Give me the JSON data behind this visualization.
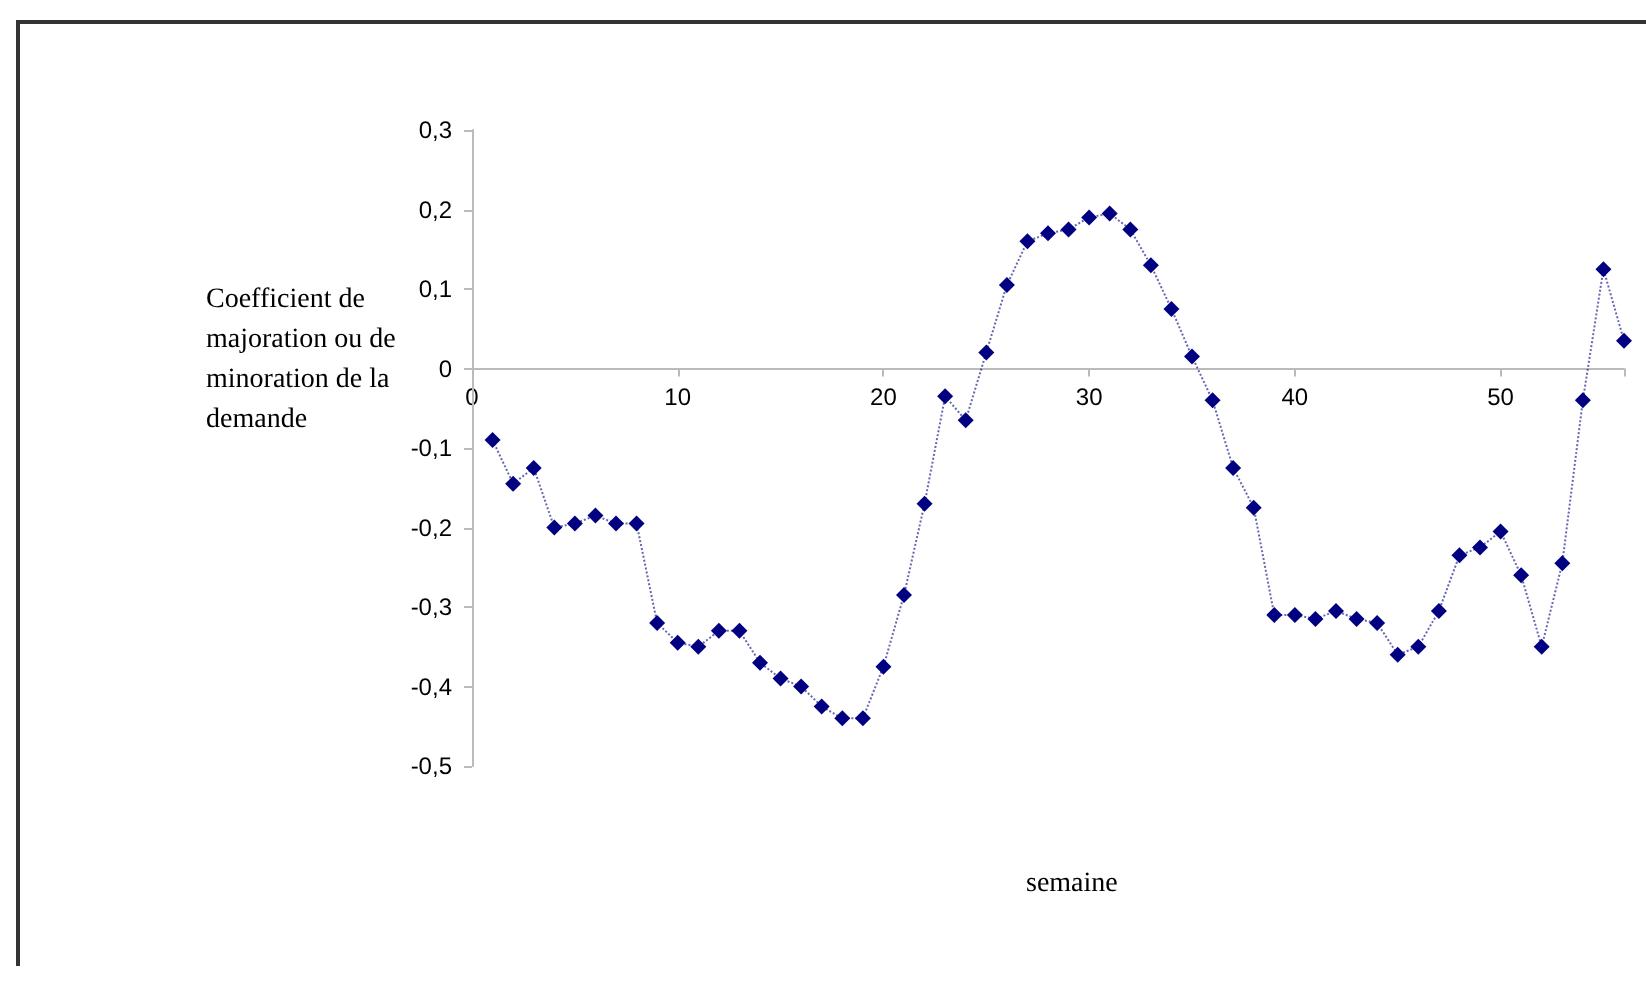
{
  "chart_data": {
    "type": "line",
    "xlabel": "semaine",
    "ylabel": "Coefficient de majoration ou de minoration de la demande",
    "x": [
      1,
      2,
      3,
      4,
      5,
      6,
      7,
      8,
      9,
      10,
      11,
      12,
      13,
      14,
      15,
      16,
      17,
      18,
      19,
      20,
      21,
      22,
      23,
      24,
      25,
      26,
      27,
      28,
      29,
      30,
      31,
      32,
      33,
      34,
      35,
      36,
      37,
      38,
      39,
      40,
      41,
      42,
      43,
      44,
      45,
      46,
      47,
      48,
      49,
      50,
      51,
      52,
      53,
      54,
      55,
      56
    ],
    "series": [
      {
        "color": "#000080",
        "values": [
          -0.09,
          -0.145,
          -0.125,
          -0.2,
          -0.195,
          -0.185,
          -0.195,
          -0.195,
          -0.32,
          -0.345,
          -0.35,
          -0.33,
          -0.33,
          -0.37,
          -0.39,
          -0.4,
          -0.425,
          -0.44,
          -0.44,
          -0.375,
          -0.285,
          -0.17,
          -0.035,
          -0.065,
          0.02,
          0.105,
          0.16,
          0.17,
          0.175,
          0.19,
          0.195,
          0.175,
          0.13,
          0.075,
          0.015,
          -0.04,
          -0.125,
          -0.175,
          -0.31,
          -0.31,
          -0.315,
          -0.305,
          -0.315,
          -0.32,
          -0.36,
          -0.35,
          -0.305,
          -0.235,
          -0.225,
          -0.205,
          -0.26,
          -0.35,
          -0.245,
          -0.04,
          0.125,
          0.035
        ]
      }
    ],
    "xlim": [
      0,
      56
    ],
    "xticks": [
      0,
      10,
      20,
      30,
      40,
      50
    ],
    "ylim": [
      -0.5,
      0.3
    ],
    "yticks": [
      {
        "value": 0.3,
        "label": "0,3"
      },
      {
        "value": 0.2,
        "label": "0,2"
      },
      {
        "value": 0.1,
        "label": "0,1"
      },
      {
        "value": 0,
        "label": "0"
      },
      {
        "value": -0.1,
        "label": "-0,1"
      },
      {
        "value": -0.2,
        "label": "-0,2"
      },
      {
        "value": -0.3,
        "label": "-0,3"
      },
      {
        "value": -0.4,
        "label": "-0,4"
      },
      {
        "value": -0.5,
        "label": "-0,5"
      }
    ],
    "marker": "diamond",
    "line_style": "dotted"
  }
}
